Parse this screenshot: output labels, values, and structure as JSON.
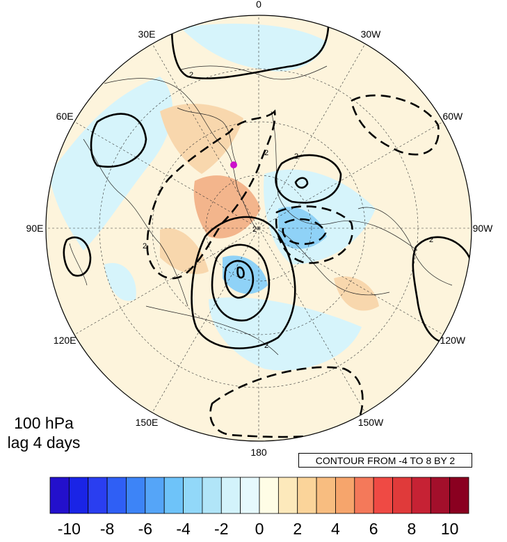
{
  "map": {
    "projection": "north polar stereographic",
    "longitude_labels": [
      "0",
      "30W",
      "60W",
      "90W",
      "120W",
      "150W",
      "180",
      "150E",
      "120E",
      "90E",
      "60E",
      "30E"
    ],
    "shading_palette": {
      "strong_negative": "#4f86f5",
      "negative": "#8fd2f7",
      "weak_negative": "#d6f4fb",
      "weak_positive": "#fdf4dc",
      "positive": "#f8d7ad",
      "strong_positive": "#f3b58c"
    },
    "contour_label_value": "2",
    "marker_color": "#cc11cc"
  },
  "caption": {
    "level": "100 hPa",
    "lag": "lag 4 days"
  },
  "contour_info": "CONTOUR FROM -4 TO 8 BY 2",
  "colorbar": {
    "colors": [
      "#2310cc",
      "#1a24e6",
      "#2a3ef0",
      "#2f5ff5",
      "#3d84f7",
      "#55a5f8",
      "#6ec3f9",
      "#92d8f9",
      "#b1e5f8",
      "#d3f3fb",
      "#e6f9fd",
      "#fffde6",
      "#fde9bb",
      "#fbd49a",
      "#f8bd80",
      "#f6a56c",
      "#f4795a",
      "#ef4a44",
      "#e03a3a",
      "#c62234",
      "#a30f2b",
      "#8a0020"
    ],
    "ticks": [
      "-10",
      "-8",
      "-6",
      "-4",
      "-2",
      "0",
      "2",
      "4",
      "6",
      "8",
      "10"
    ]
  }
}
